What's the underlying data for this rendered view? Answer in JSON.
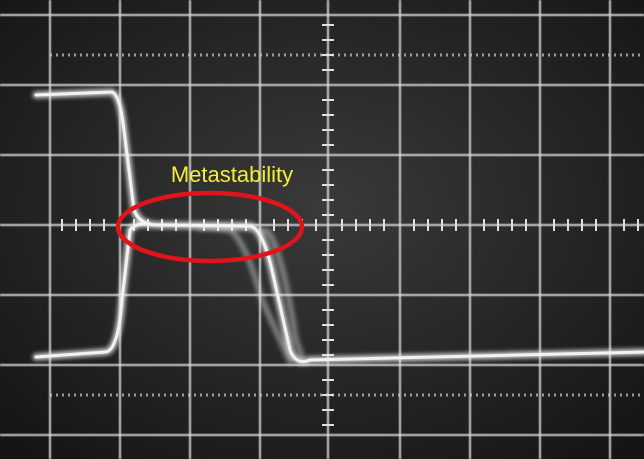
{
  "annotation": {
    "label": "Metastability"
  }
}
